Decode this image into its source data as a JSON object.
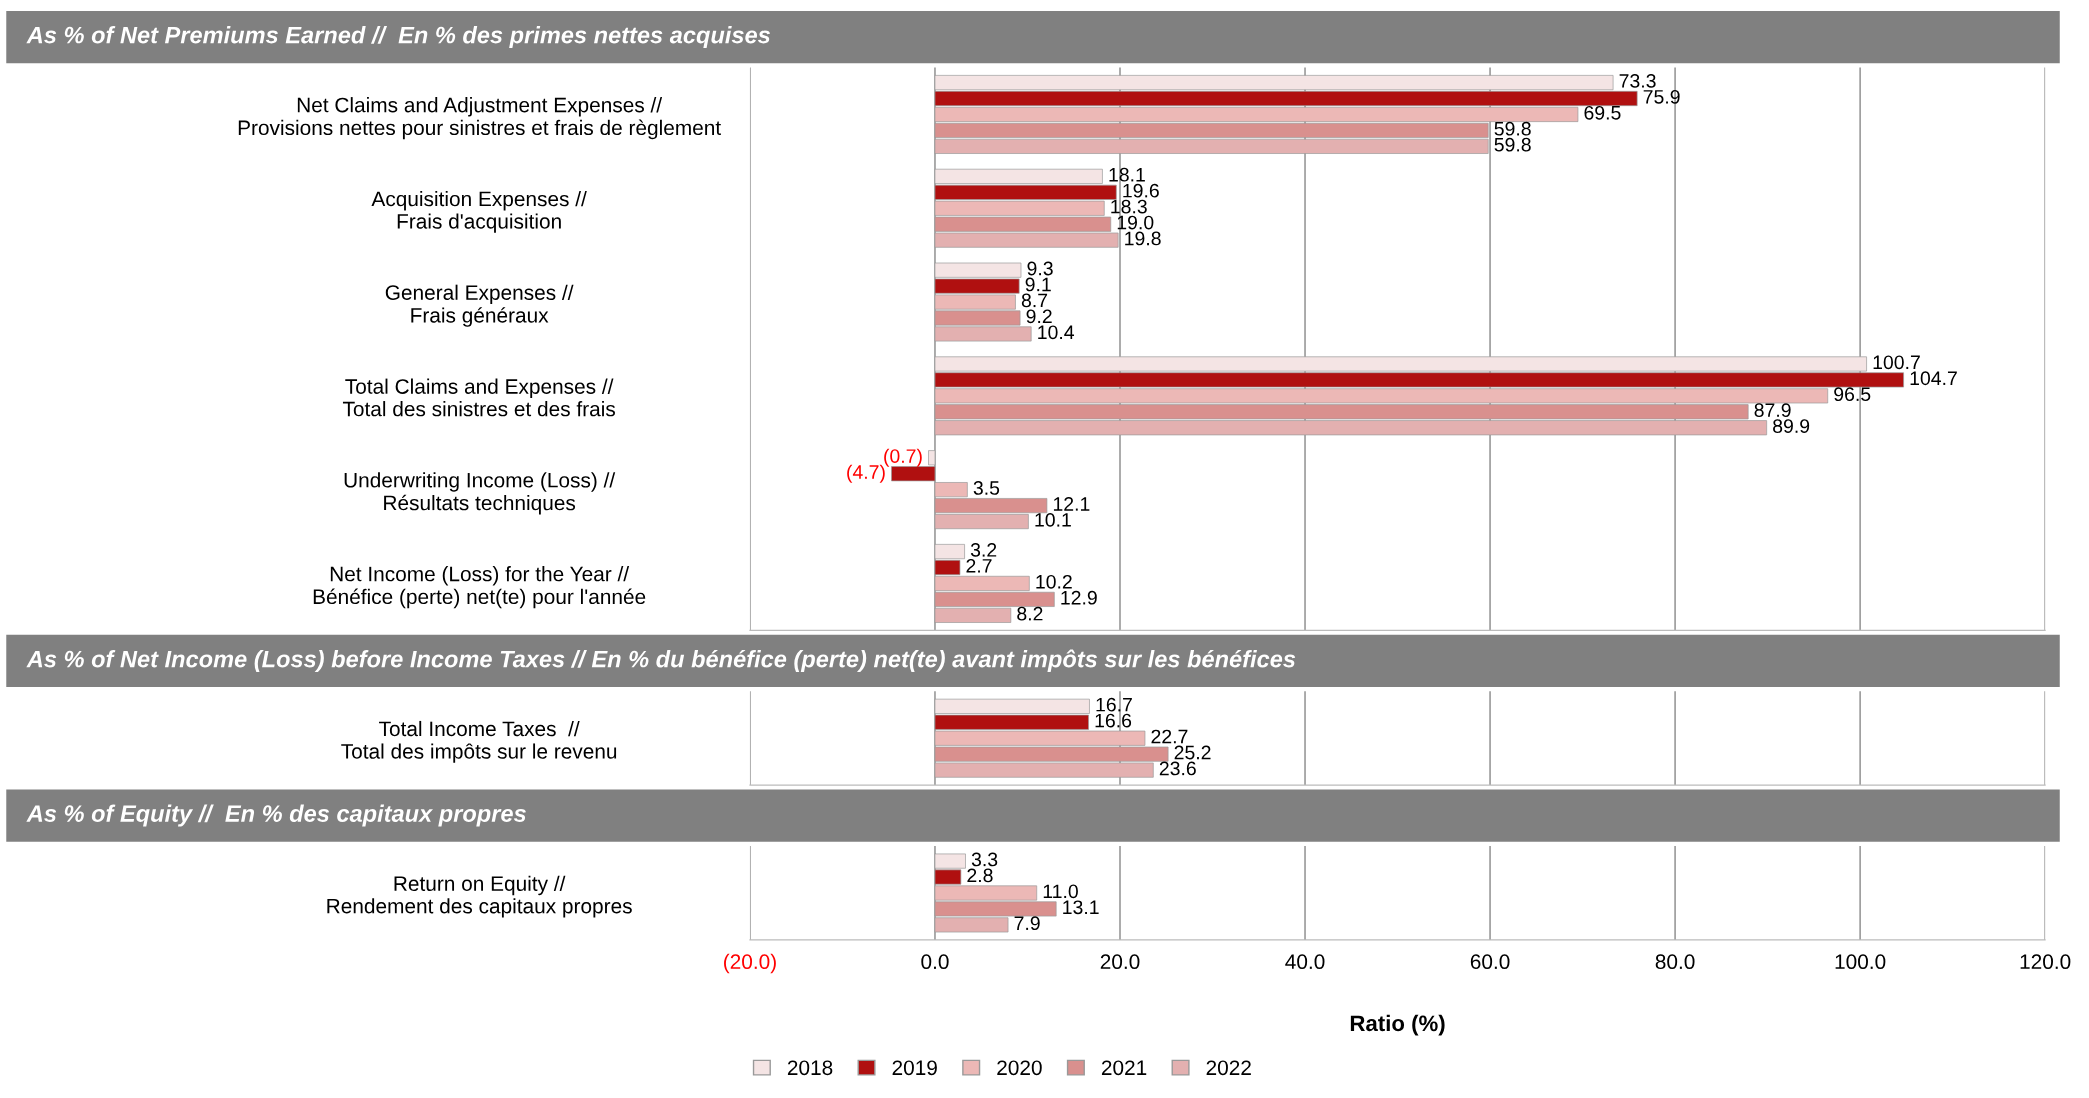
{
  "chart_data": [
    {
      "type": "bar",
      "orientation": "horizontal",
      "title": "As % of Net Premiums Earned //  En % des primes nettes acquises",
      "categories": [
        "Net Claims and Adjustment Expenses //\nProvisions nettes pour sinistres et frais de règlement",
        "Acquisition Expenses //\nFrais d'acquisition",
        "General Expenses //\nFrais généraux",
        "Total Claims and Expenses //\nTotal des sinistres et des frais",
        "Underwriting Income (Loss) //\nRésultats techniques",
        "Net Income (Loss) for the Year //\nBénéfice (perte) net(te) pour l'année"
      ],
      "series": [
        {
          "name": "2018",
          "color": "#f4e4e4",
          "values": [
            73.3,
            18.1,
            9.3,
            100.7,
            -0.7,
            3.2
          ],
          "value_labels": [
            "73.3",
            "18.1",
            "9.3",
            "100.7",
            "(0.7)",
            "3.2"
          ]
        },
        {
          "name": "2019",
          "color": "#b01010",
          "values": [
            75.9,
            19.6,
            9.1,
            104.7,
            -4.7,
            2.7
          ],
          "value_labels": [
            "75.9",
            "19.6",
            "9.1",
            "104.7",
            "(4.7)",
            "2.7"
          ]
        },
        {
          "name": "2020",
          "color": "#ecb8b6",
          "values": [
            69.5,
            18.3,
            8.7,
            96.5,
            3.5,
            10.2
          ],
          "value_labels": [
            "69.5",
            "18.3",
            "8.7",
            "96.5",
            "3.5",
            "10.2"
          ]
        },
        {
          "name": "2021",
          "color": "#d9908e",
          "values": [
            59.8,
            19.0,
            9.2,
            87.9,
            12.1,
            12.9
          ],
          "value_labels": [
            "59.8",
            "19.0",
            "9.2",
            "87.9",
            "12.1",
            "12.9"
          ]
        },
        {
          "name": "2022",
          "color": "#e3b0b0",
          "values": [
            59.8,
            19.8,
            10.4,
            89.9,
            10.1,
            8.2
          ],
          "value_labels": [
            "59.8",
            "19.8",
            "10.4",
            "89.9",
            "10.1",
            "8.2"
          ]
        }
      ],
      "xlim": [
        -20,
        120
      ],
      "xticks": [
        {
          "value": -20,
          "label": null
        },
        {
          "value": 0,
          "label": null
        },
        {
          "value": 20,
          "label": null
        },
        {
          "value": 40,
          "label": null
        },
        {
          "value": 60,
          "label": null
        },
        {
          "value": 80,
          "label": null
        },
        {
          "value": 100,
          "label": null
        },
        {
          "value": 120,
          "label": null
        }
      ],
      "tick_labels": "y",
      "grid": "x",
      "legend": "bottom"
    },
    {
      "type": "bar",
      "orientation": "horizontal",
      "title": "As % of Net Income (Loss) before Income Taxes // En % du bénéfice (perte) net(te) avant impôts sur les bénéfices",
      "categories": [
        "Total Income Taxes  //\nTotal des impôts sur le revenu"
      ],
      "series": [
        {
          "color": "#f4e4e4",
          "values": [
            16.7
          ],
          "value_labels": [
            "16.7"
          ]
        },
        {
          "color": "#b01010",
          "values": [
            16.6
          ],
          "value_labels": [
            "16.6"
          ]
        },
        {
          "color": "#ecb8b6",
          "values": [
            22.7
          ],
          "value_labels": [
            "22.7"
          ]
        },
        {
          "color": "#d9908e",
          "values": [
            25.2
          ],
          "value_labels": [
            "25.2"
          ]
        },
        {
          "color": "#e3b0b0",
          "values": [
            23.6
          ],
          "value_labels": [
            "23.6"
          ]
        }
      ],
      "xlim": [
        -20,
        120
      ],
      "xticks": [
        {
          "value": -20,
          "label": null
        },
        {
          "value": 0,
          "label": null
        },
        {
          "value": 20,
          "label": null
        },
        {
          "value": 40,
          "label": null
        },
        {
          "value": 60,
          "label": null
        },
        {
          "value": 80,
          "label": null
        },
        {
          "value": 100,
          "label": null
        },
        {
          "value": 120,
          "label": null
        }
      ],
      "tick_labels": "y",
      "grid": "x"
    },
    {
      "type": "bar",
      "orientation": "horizontal",
      "title": "As % of Equity //  En % des capitaux propres",
      "categories": [
        "Return on Equity //\nRendement des capitaux propres"
      ],
      "series": [
        {
          "color": "#f4e4e4",
          "values": [
            3.3
          ],
          "value_labels": [
            "3.3"
          ]
        },
        {
          "color": "#b01010",
          "values": [
            2.8
          ],
          "value_labels": [
            "2.8"
          ]
        },
        {
          "color": "#ecb8b6",
          "values": [
            11.0
          ],
          "value_labels": [
            "11.0"
          ]
        },
        {
          "color": "#d9908e",
          "values": [
            13.1
          ],
          "value_labels": [
            "13.1"
          ]
        },
        {
          "color": "#e3b0b0",
          "values": [
            7.9
          ],
          "value_labels": [
            "7.9"
          ]
        }
      ],
      "xlabel": "Ratio (%)",
      "xlim": [
        -20,
        120
      ],
      "xticks": [
        {
          "value": -20,
          "label": "(20.0)"
        },
        {
          "value": 0,
          "label": "0.0"
        },
        {
          "value": 20,
          "label": "20.0"
        },
        {
          "value": 40,
          "label": "40.0"
        },
        {
          "value": 60,
          "label": "60.0"
        },
        {
          "value": 80,
          "label": "80.0"
        },
        {
          "value": 100,
          "label": "100.0"
        },
        {
          "value": 120,
          "label": "120.0"
        }
      ],
      "grid": "x"
    }
  ]
}
